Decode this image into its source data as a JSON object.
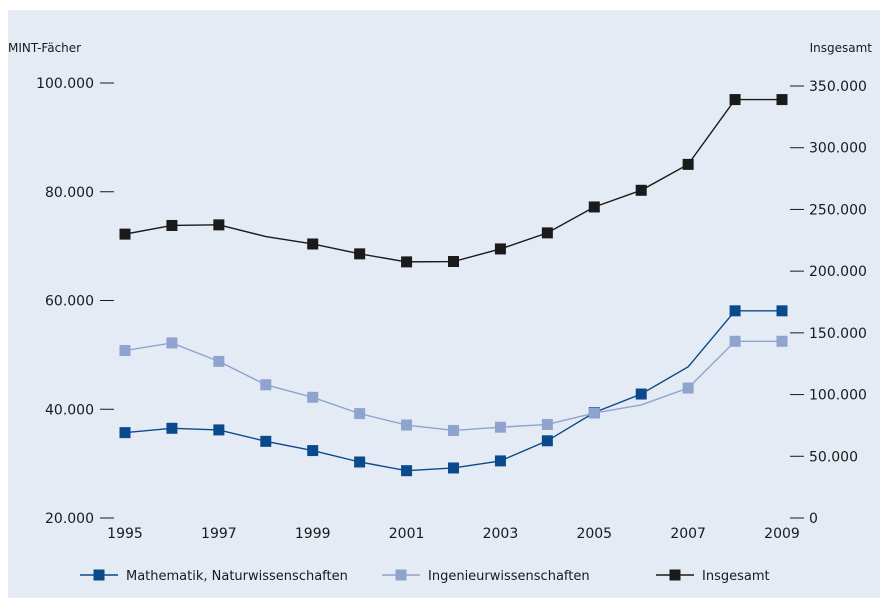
{
  "chart_data": {
    "type": "line",
    "ylabel_left": "MINT-Fächer",
    "ylabel_right": "Insgesamt",
    "x_ticks": [
      "1995",
      "1997",
      "1999",
      "2001",
      "2003",
      "2005",
      "2007",
      "2009"
    ],
    "y_left_ticks": [
      "100.000",
      "80.000",
      "60.000",
      "40.000",
      "20.000"
    ],
    "y_right_ticks": [
      "350.000",
      "300.000",
      "250.000",
      "200.000",
      "150.000",
      "100.000",
      "50.000",
      "0"
    ],
    "ylim_left": [
      20000,
      100000
    ],
    "ylim_right": [
      0,
      350000
    ],
    "x": [
      1995,
      1996,
      1997,
      1998,
      1999,
      2000,
      2001,
      2002,
      2003,
      2004,
      2005,
      2006,
      2007,
      2008,
      2009
    ],
    "series": [
      {
        "name": "Mathematik, Naturwissenschaften",
        "axis": "left",
        "color": "#0a4a8c",
        "marker_on": [
          true,
          true,
          true,
          true,
          true,
          true,
          true,
          true,
          true,
          true,
          true,
          true,
          false,
          true,
          true
        ],
        "values": [
          35700,
          36500,
          36200,
          34100,
          32400,
          30300,
          28700,
          29200,
          30500,
          34200,
          39400,
          42800,
          47800,
          58100,
          58100
        ]
      },
      {
        "name": "Ingenieurwissenschaften",
        "axis": "left",
        "color": "#8fa3cf",
        "marker_on": [
          true,
          true,
          true,
          true,
          true,
          true,
          true,
          true,
          true,
          true,
          true,
          false,
          true,
          true,
          true
        ],
        "values": [
          50800,
          52200,
          48800,
          44500,
          42200,
          39200,
          37100,
          36100,
          36700,
          37200,
          39300,
          40800,
          43900,
          52500,
          52500
        ]
      },
      {
        "name": "Insgesamt",
        "axis": "right",
        "color": "#1a1a1a",
        "marker_on": [
          true,
          true,
          true,
          false,
          true,
          true,
          true,
          true,
          true,
          true,
          true,
          true,
          true,
          true,
          true
        ],
        "values": [
          230000,
          237000,
          237500,
          228000,
          222000,
          214000,
          207500,
          207800,
          218000,
          231000,
          252000,
          265500,
          286500,
          339000,
          339000
        ]
      }
    ],
    "legend_position": "bottom",
    "grid": false
  }
}
